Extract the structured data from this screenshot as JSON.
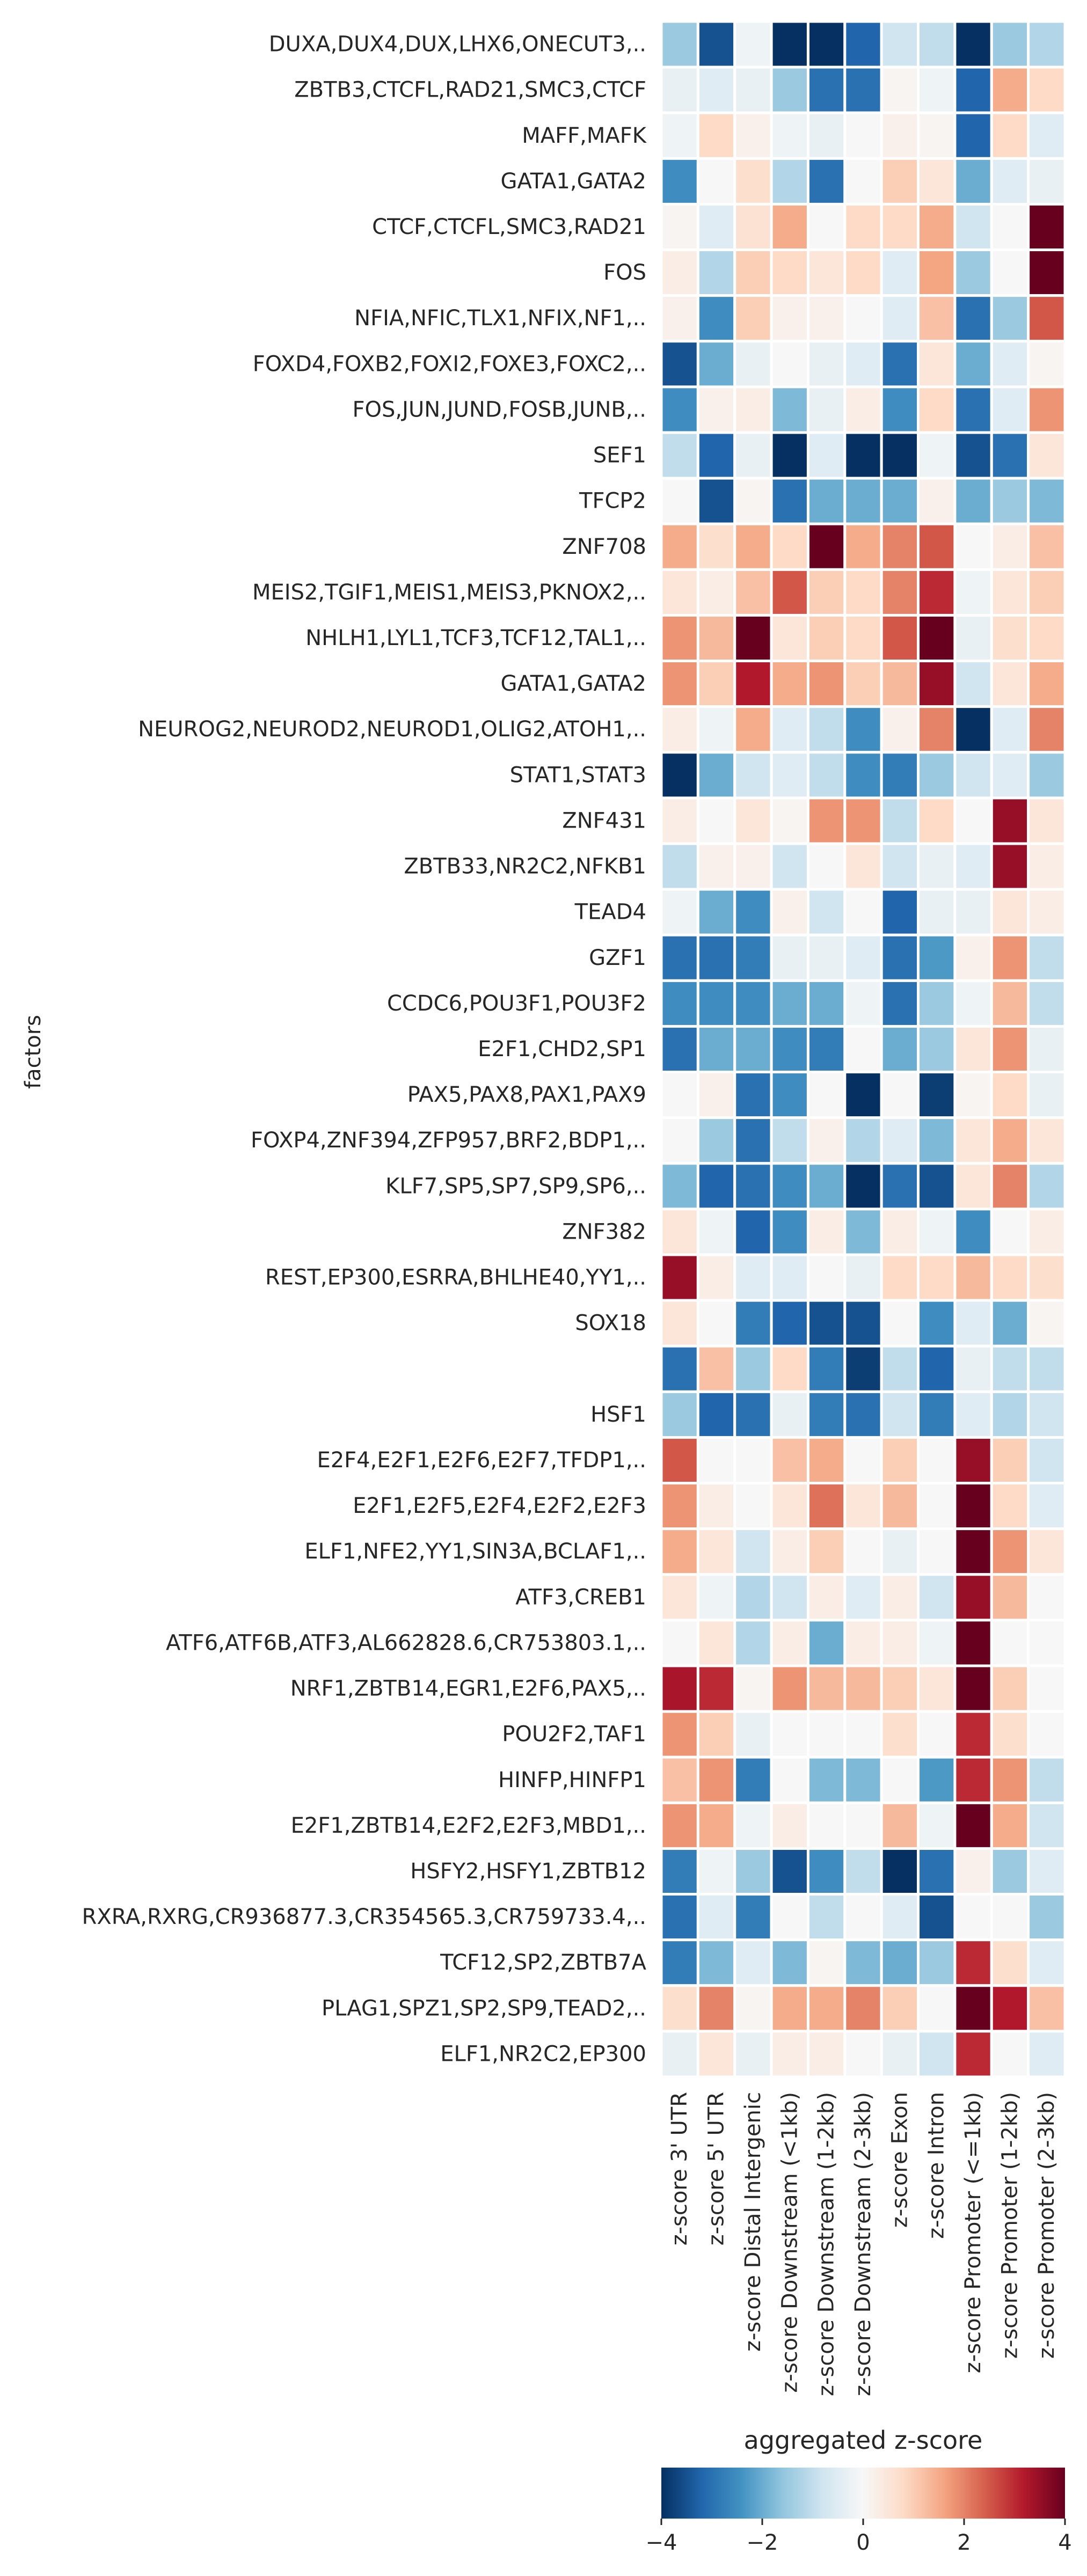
{
  "chart_data": {
    "type": "heatmap",
    "ylabel": "factors",
    "colorbar": {
      "title": "aggregated z-score",
      "range": [
        -4,
        4
      ],
      "ticks": [
        -4,
        -2,
        0,
        2,
        4
      ],
      "tick_labels": [
        "−4",
        "−2",
        "0",
        "2",
        "4"
      ],
      "colormap": "RdBu_r"
    },
    "columns": [
      "z-score 3' UTR",
      "z-score 5' UTR",
      "z-score Distal Intergenic",
      "z-score Downstream (<1kb)",
      "z-score Downstream (1-2kb)",
      "z-score Downstream (2-3kb)",
      "z-score Exon",
      "z-score Intron",
      "z-score Promoter (<=1kb)",
      "z-score Promoter (1-2kb)",
      "z-score Promoter (2-3kb)"
    ],
    "rows": [
      "DUXA,DUX4,DUX,LHX6,ONECUT3,..",
      "ZBTB3,CTCFL,RAD21,SMC3,CTCF",
      "MAFF,MAFK",
      "GATA1,GATA2",
      "CTCF,CTCFL,SMC3,RAD21",
      "FOS",
      "NFIA,NFIC,TLX1,NFIX,NF1,..",
      "FOXD4,FOXB2,FOXI2,FOXE3,FOXC2,..",
      "FOS,JUN,JUND,FOSB,JUNB,..",
      "SEF1",
      "TFCP2",
      "ZNF708",
      "MEIS2,TGIF1,MEIS1,MEIS3,PKNOX2,..",
      "NHLH1,LYL1,TCF3,TCF12,TAL1,..",
      "GATA1,GATA2",
      "NEUROG2,NEUROD2,NEUROD1,OLIG2,ATOH1,..",
      "STAT1,STAT3",
      "ZNF431",
      "ZBTB33,NR2C2,NFKB1",
      "TEAD4",
      "GZF1",
      "CCDC6,POU3F1,POU3F2",
      "E2F1,CHD2,SP1",
      "PAX5,PAX8,PAX1,PAX9",
      "FOXP4,ZNF394,ZFP957,BRF2,BDP1,..",
      "KLF7,SP5,SP7,SP9,SP6,..",
      "ZNF382",
      "REST,EP300,ESRRA,BHLHE40,YY1,..",
      "SOX18",
      "",
      "HSF1",
      "E2F4,E2F1,E2F6,E2F7,TFDP1,..",
      "E2F1,E2F5,E2F4,E2F2,E2F3",
      "ELF1,NFE2,YY1,SIN3A,BCLAF1,..",
      "ATF3,CREB1",
      "ATF6,ATF6B,ATF3,AL662828.6,CR753803.1,..",
      "NRF1,ZBTB14,EGR1,E2F6,PAX5,..",
      "POU2F2,TAF1",
      "HINFP,HINFP1",
      "E2F1,ZBTB14,E2F2,E2F3,MBD1,..",
      "HSFY2,HSFY1,ZBTB12",
      "RXRA,RXRG,CR936877.3,CR354565.3,CR759733.4,..",
      "TCF12,SP2,ZBTB7A",
      "PLAG1,SPZ1,SP2,SP9,TEAD2,..",
      "ELF1,NR2C2,EP300"
    ],
    "values": [
      [
        -1.5,
        -3.5,
        -0.2,
        -4.5,
        -4.5,
        -3.2,
        -0.8,
        -1.0,
        -4.0,
        -1.5,
        -1.2
      ],
      [
        -0.3,
        -0.5,
        -0.3,
        -1.5,
        -3.0,
        -3.0,
        0.1,
        -0.2,
        -3.2,
        1.5,
        0.8
      ],
      [
        -0.2,
        0.8,
        0.2,
        -0.2,
        -0.3,
        0.0,
        0.2,
        0.1,
        -3.2,
        0.8,
        -0.5
      ],
      [
        -2.5,
        0.0,
        0.7,
        -1.2,
        -3.0,
        0.0,
        1.0,
        0.5,
        -2.0,
        -0.5,
        -0.3
      ],
      [
        0.1,
        -0.5,
        0.6,
        1.5,
        0.0,
        0.8,
        0.8,
        1.5,
        -0.8,
        0.0,
        4.0
      ],
      [
        0.3,
        -1.2,
        1.0,
        0.8,
        0.5,
        0.8,
        -0.5,
        1.6,
        -1.5,
        0.0,
        4.0
      ],
      [
        0.2,
        -2.5,
        1.0,
        0.2,
        0.2,
        0.0,
        -0.5,
        1.2,
        -3.0,
        -1.5,
        2.5
      ],
      [
        -3.5,
        -2.0,
        -0.3,
        0.0,
        -0.3,
        -0.5,
        -3.0,
        0.5,
        -2.0,
        -0.5,
        0.1
      ],
      [
        -2.5,
        0.2,
        0.3,
        -1.8,
        -0.3,
        0.3,
        -2.5,
        0.8,
        -3.0,
        -0.5,
        1.8
      ],
      [
        -1.0,
        -3.2,
        -0.3,
        -4.5,
        -0.5,
        -4.5,
        -4.5,
        -0.2,
        -3.5,
        -3.0,
        0.5
      ],
      [
        0.0,
        -3.5,
        0.1,
        -3.0,
        -2.0,
        -2.0,
        -2.0,
        0.2,
        -2.0,
        -1.5,
        -1.8
      ],
      [
        1.5,
        0.7,
        1.5,
        0.8,
        4.0,
        1.5,
        2.0,
        2.5,
        0.0,
        0.3,
        1.2
      ],
      [
        0.5,
        0.3,
        1.2,
        2.5,
        1.0,
        0.8,
        2.0,
        3.0,
        -0.2,
        0.5,
        1.0
      ],
      [
        1.8,
        1.3,
        4.5,
        0.5,
        1.0,
        0.8,
        2.5,
        4.5,
        -0.3,
        0.7,
        0.8
      ],
      [
        1.8,
        1.0,
        3.2,
        1.5,
        1.8,
        1.0,
        1.3,
        3.5,
        -0.8,
        0.5,
        1.5
      ],
      [
        0.3,
        -0.2,
        1.5,
        -0.5,
        -1.0,
        -2.5,
        0.2,
        2.0,
        -4.5,
        -0.5,
        2.0
      ],
      [
        -4.0,
        -2.0,
        -0.8,
        -0.5,
        -1.0,
        -2.5,
        -2.8,
        -1.5,
        -0.8,
        -0.5,
        -1.5
      ],
      [
        0.3,
        0.0,
        0.5,
        0.1,
        1.8,
        1.8,
        -1.0,
        0.8,
        0.0,
        3.5,
        0.5
      ],
      [
        -1.0,
        0.2,
        0.2,
        -0.8,
        0.0,
        0.5,
        -0.8,
        -0.3,
        -0.5,
        3.5,
        0.3
      ],
      [
        -0.2,
        -2.0,
        -2.5,
        0.2,
        -0.8,
        0.0,
        -3.2,
        -0.3,
        -0.3,
        0.5,
        0.3
      ],
      [
        -3.0,
        -3.0,
        -2.8,
        -0.3,
        -0.3,
        -0.5,
        -3.0,
        -2.3,
        0.2,
        1.8,
        -1.0
      ],
      [
        -2.5,
        -2.5,
        -2.5,
        -2.0,
        -2.0,
        -0.2,
        -3.0,
        -1.5,
        -0.2,
        1.3,
        -1.0
      ],
      [
        -3.0,
        -2.0,
        -2.0,
        -2.5,
        -2.8,
        0.0,
        -2.0,
        -1.5,
        0.5,
        1.8,
        -0.3
      ],
      [
        0.0,
        0.2,
        -3.0,
        -2.5,
        0.0,
        -4.5,
        0.0,
        -3.8,
        0.1,
        0.8,
        -0.3
      ],
      [
        0.0,
        -1.5,
        -3.0,
        -1.0,
        0.2,
        -1.2,
        -0.5,
        -1.8,
        0.5,
        1.5,
        0.5
      ],
      [
        -1.8,
        -3.2,
        -3.0,
        -2.5,
        -2.0,
        -4.5,
        -3.0,
        -3.5,
        0.5,
        2.0,
        -1.2
      ],
      [
        0.5,
        -0.2,
        -3.2,
        -2.5,
        0.3,
        -1.8,
        0.3,
        -0.2,
        -2.5,
        0.0,
        0.3
      ],
      [
        3.5,
        0.3,
        -0.5,
        -0.5,
        0.0,
        -0.3,
        0.8,
        0.8,
        1.3,
        0.8,
        0.7
      ],
      [
        0.5,
        0.0,
        -2.8,
        -3.2,
        -3.5,
        -3.5,
        0.0,
        -2.5,
        -0.5,
        -2.0,
        0.1
      ],
      [
        -3.0,
        1.2,
        -1.5,
        0.8,
        -2.8,
        -3.8,
        -1.0,
        -3.2,
        -0.3,
        -1.0,
        -1.0
      ],
      [
        -1.5,
        -3.2,
        -3.0,
        -0.3,
        -2.8,
        -3.0,
        -0.8,
        -2.8,
        -0.5,
        -1.2,
        -0.8
      ],
      [
        2.5,
        0.0,
        0.0,
        1.2,
        1.5,
        0.0,
        1.0,
        0.0,
        3.5,
        1.0,
        -0.8
      ],
      [
        1.8,
        0.3,
        0.0,
        0.5,
        2.2,
        0.5,
        1.3,
        0.0,
        4.0,
        0.8,
        -0.5
      ],
      [
        1.5,
        0.5,
        -0.8,
        0.3,
        1.0,
        0.0,
        -0.3,
        0.0,
        4.0,
        1.8,
        0.5
      ],
      [
        0.5,
        -0.2,
        -1.2,
        -0.8,
        0.3,
        -0.5,
        0.3,
        -0.8,
        3.5,
        1.3,
        0.0
      ],
      [
        0.0,
        0.5,
        -1.2,
        0.3,
        -2.0,
        0.3,
        0.3,
        -0.2,
        4.3,
        0.0,
        0.0
      ],
      [
        3.3,
        3.0,
        0.1,
        1.8,
        1.3,
        1.3,
        1.0,
        0.5,
        4.5,
        1.0,
        0.0
      ],
      [
        1.8,
        1.0,
        -0.3,
        0.0,
        0.0,
        0.0,
        0.7,
        0.0,
        3.0,
        0.7,
        0.0
      ],
      [
        1.2,
        1.8,
        -2.8,
        0.0,
        -1.8,
        -1.8,
        0.0,
        -2.3,
        3.0,
        1.8,
        -1.0
      ],
      [
        1.8,
        1.5,
        -0.2,
        0.3,
        0.0,
        0.0,
        1.3,
        -0.2,
        4.0,
        1.5,
        -0.8
      ],
      [
        -2.8,
        -0.2,
        -1.5,
        -3.5,
        -2.5,
        -1.0,
        -4.2,
        -3.0,
        0.2,
        -1.5,
        -0.5
      ],
      [
        -3.0,
        -0.5,
        -2.8,
        0.0,
        -1.0,
        0.0,
        -0.5,
        -3.5,
        0.0,
        0.0,
        -1.5
      ],
      [
        -2.8,
        -1.8,
        -0.5,
        -1.8,
        0.1,
        -1.8,
        -2.0,
        -1.5,
        3.0,
        0.7,
        -0.5
      ],
      [
        0.7,
        2.0,
        0.1,
        1.5,
        1.5,
        2.0,
        1.0,
        0.0,
        4.5,
        3.2,
        1.2
      ],
      [
        -0.3,
        0.5,
        -0.3,
        0.3,
        0.3,
        0.0,
        -0.3,
        -0.8,
        3.0,
        0.0,
        -0.5
      ]
    ]
  }
}
